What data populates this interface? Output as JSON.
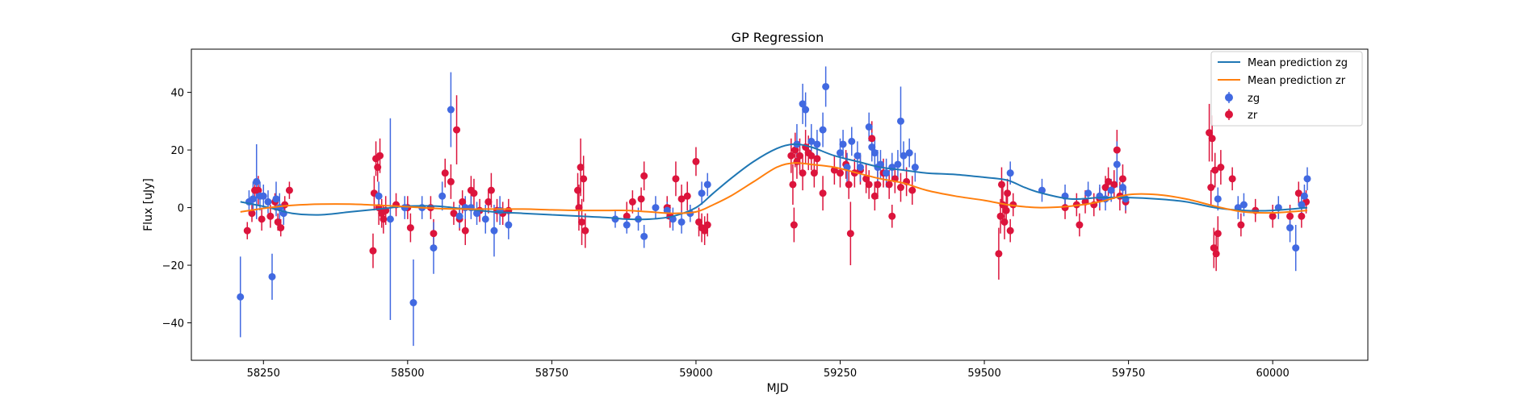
{
  "chart_data": {
    "type": "scatter",
    "title": "GP Regression",
    "xlabel": "MJD",
    "ylabel": "Flux [uJy]",
    "xlim": [
      58125,
      60165
    ],
    "ylim": [
      -53,
      55
    ],
    "xticks": [
      58250,
      58500,
      58750,
      59000,
      59250,
      59500,
      59750,
      60000
    ],
    "xtick_labels": [
      "58250",
      "58500",
      "58750",
      "59000",
      "59250",
      "59500",
      "59750",
      "60000"
    ],
    "yticks": [
      -40,
      -20,
      0,
      20,
      40
    ],
    "ytick_labels": [
      "−40",
      "−20",
      "0",
      "20",
      "40"
    ],
    "grid": false,
    "legend_position": "top-right",
    "colors": {
      "zg": "#4169e1",
      "zr": "#dc143c",
      "mean_zg": "#1f77b4",
      "mean_zr": "#ff7f0e"
    },
    "lines": [
      {
        "name": "Mean prediction zg",
        "color": "#1f77b4",
        "x": [
          58210,
          58260,
          58300,
          58350,
          58400,
          58450,
          58500,
          58550,
          58600,
          58650,
          58700,
          58750,
          58800,
          58850,
          58880,
          58920,
          58960,
          59000,
          59030,
          59060,
          59100,
          59140,
          59170,
          59200,
          59240,
          59280,
          59320,
          59360,
          59400,
          59450,
          59500,
          59540,
          59570,
          59600,
          59650,
          59700,
          59750,
          59800,
          59850,
          59900,
          59950,
          60000,
          60060
        ],
        "y": [
          2,
          0,
          -2,
          -2.5,
          -1.5,
          -0.5,
          0.5,
          0.5,
          -0.5,
          -1.5,
          -2,
          -2.5,
          -3,
          -3.5,
          -4,
          -4,
          -3,
          0,
          5,
          10,
          16,
          20.5,
          22,
          21,
          18,
          16,
          14,
          13,
          12,
          11.5,
          10.5,
          9.5,
          7,
          5,
          3,
          3.5,
          3.5,
          3,
          2,
          0,
          -1,
          -1,
          0
        ]
      },
      {
        "name": "Mean prediction zr",
        "color": "#ff7f0e",
        "x": [
          58210,
          58260,
          58300,
          58350,
          58400,
          58450,
          58500,
          58550,
          58600,
          58650,
          58700,
          58750,
          58800,
          58850,
          58880,
          58920,
          58960,
          59000,
          59030,
          59060,
          59100,
          59140,
          59170,
          59200,
          59240,
          59280,
          59320,
          59360,
          59400,
          59450,
          59500,
          59540,
          59570,
          59600,
          59650,
          59700,
          59750,
          59800,
          59850,
          59900,
          59950,
          60000,
          60060
        ],
        "y": [
          -1.5,
          0,
          0.8,
          1.2,
          1.2,
          0.8,
          0.3,
          -0.3,
          -0.5,
          -0.5,
          -0.5,
          -0.8,
          -1,
          -1,
          -1,
          -1.5,
          -2,
          -1.5,
          1,
          4,
          9,
          14,
          15.5,
          15,
          14,
          12,
          10,
          8.5,
          6,
          4,
          2.5,
          1,
          0.3,
          0,
          0.5,
          2,
          4.5,
          4.5,
          3,
          0.5,
          -1.5,
          -1.8,
          -1
        ]
      }
    ],
    "series": [
      {
        "name": "zg",
        "color": "#4169e1",
        "points": [
          [
            58210,
            -31,
            14
          ],
          [
            58225,
            2,
            4
          ],
          [
            58232,
            3,
            6
          ],
          [
            58238,
            9,
            13
          ],
          [
            58244,
            4,
            5
          ],
          [
            58250,
            4,
            4
          ],
          [
            58258,
            2,
            4
          ],
          [
            58265,
            -24,
            8
          ],
          [
            58272,
            3,
            6
          ],
          [
            58278,
            0,
            5
          ],
          [
            58285,
            -2,
            4
          ],
          [
            58450,
            4,
            5
          ],
          [
            58470,
            -4,
            35
          ],
          [
            58495,
            0,
            4
          ],
          [
            58510,
            -33,
            15
          ],
          [
            58525,
            0,
            4
          ],
          [
            58545,
            -14,
            9
          ],
          [
            58560,
            4,
            5
          ],
          [
            58575,
            34,
            13
          ],
          [
            58590,
            -3,
            4
          ],
          [
            58600,
            0,
            4
          ],
          [
            58610,
            0,
            4
          ],
          [
            58620,
            -2,
            4
          ],
          [
            58635,
            -4,
            5
          ],
          [
            58650,
            -8,
            9
          ],
          [
            58660,
            -1,
            5
          ],
          [
            58675,
            -6,
            5
          ],
          [
            58860,
            -4,
            3
          ],
          [
            58880,
            -6,
            3
          ],
          [
            58900,
            -4,
            4
          ],
          [
            58910,
            -10,
            4
          ],
          [
            58930,
            0,
            4
          ],
          [
            58950,
            -1,
            3
          ],
          [
            58960,
            -4,
            4
          ],
          [
            58975,
            -5,
            4
          ],
          [
            58990,
            -2,
            3
          ],
          [
            59010,
            5,
            4
          ],
          [
            59020,
            8,
            4
          ],
          [
            59175,
            22,
            7
          ],
          [
            59185,
            36,
            7
          ],
          [
            59190,
            34,
            6
          ],
          [
            59200,
            23,
            6
          ],
          [
            59210,
            22,
            5
          ],
          [
            59220,
            27,
            6
          ],
          [
            59225,
            42,
            7
          ],
          [
            59250,
            19,
            5
          ],
          [
            59255,
            22,
            5
          ],
          [
            59262,
            14,
            5
          ],
          [
            59270,
            23,
            5
          ],
          [
            59280,
            18,
            5
          ],
          [
            59285,
            14,
            5
          ],
          [
            59300,
            28,
            5
          ],
          [
            59305,
            21,
            5
          ],
          [
            59310,
            19,
            5
          ],
          [
            59315,
            14,
            6
          ],
          [
            59320,
            15,
            5
          ],
          [
            59330,
            12,
            5
          ],
          [
            59340,
            14,
            5
          ],
          [
            59350,
            15,
            5
          ],
          [
            59355,
            30,
            12
          ],
          [
            59360,
            18,
            5
          ],
          [
            59370,
            19,
            5
          ],
          [
            59380,
            14,
            5
          ],
          [
            59545,
            12,
            4
          ],
          [
            59600,
            6,
            4
          ],
          [
            59640,
            4,
            4
          ],
          [
            59680,
            5,
            4
          ],
          [
            59700,
            4,
            4
          ],
          [
            59710,
            3,
            4
          ],
          [
            59720,
            6,
            4
          ],
          [
            59730,
            15,
            8
          ],
          [
            59740,
            7,
            4
          ],
          [
            59745,
            3,
            4
          ],
          [
            59905,
            3,
            4
          ],
          [
            59940,
            0,
            4
          ],
          [
            59950,
            1,
            4
          ],
          [
            60010,
            0,
            4
          ],
          [
            60030,
            -7,
            5
          ],
          [
            60040,
            -14,
            8
          ],
          [
            60050,
            1,
            3
          ],
          [
            60055,
            4,
            4
          ],
          [
            60060,
            10,
            4
          ]
        ]
      },
      {
        "name": "zr",
        "color": "#dc143c",
        "points": [
          [
            58222,
            -8,
            3
          ],
          [
            58230,
            -2,
            3
          ],
          [
            58235,
            6,
            4
          ],
          [
            58241,
            6,
            5
          ],
          [
            58247,
            -4,
            4
          ],
          [
            58262,
            -3,
            4
          ],
          [
            58270,
            2,
            3
          ],
          [
            58275,
            -5,
            3
          ],
          [
            58280,
            -7,
            3
          ],
          [
            58287,
            1,
            3
          ],
          [
            58295,
            6,
            3
          ],
          [
            58440,
            -15,
            6
          ],
          [
            58442,
            5,
            6
          ],
          [
            58445,
            17,
            6
          ],
          [
            58448,
            14,
            5
          ],
          [
            58450,
            0,
            6
          ],
          [
            58452,
            18,
            6
          ],
          [
            58455,
            -2,
            5
          ],
          [
            58458,
            -4,
            5
          ],
          [
            58462,
            -1,
            5
          ],
          [
            58480,
            1,
            4
          ],
          [
            58500,
            0,
            4
          ],
          [
            58505,
            -7,
            5
          ],
          [
            58540,
            0,
            4
          ],
          [
            58545,
            -9,
            5
          ],
          [
            58565,
            12,
            5
          ],
          [
            58575,
            9,
            6
          ],
          [
            58580,
            -2,
            4
          ],
          [
            58585,
            27,
            12
          ],
          [
            58590,
            -4,
            4
          ],
          [
            58595,
            2,
            4
          ],
          [
            58600,
            -8,
            5
          ],
          [
            58610,
            6,
            5
          ],
          [
            58615,
            5,
            5
          ],
          [
            58625,
            -1,
            4
          ],
          [
            58640,
            2,
            4
          ],
          [
            58645,
            6,
            6
          ],
          [
            58655,
            -1,
            4
          ],
          [
            58665,
            -2,
            4
          ],
          [
            58675,
            -1,
            4
          ],
          [
            58795,
            6,
            6
          ],
          [
            58797,
            0,
            8
          ],
          [
            58800,
            14,
            10
          ],
          [
            58802,
            -5,
            8
          ],
          [
            58805,
            10,
            8
          ],
          [
            58808,
            -8,
            6
          ],
          [
            58880,
            -3,
            5
          ],
          [
            58890,
            2,
            4
          ],
          [
            58905,
            3,
            4
          ],
          [
            58910,
            11,
            5
          ],
          [
            58950,
            0,
            4
          ],
          [
            58955,
            -3,
            4
          ],
          [
            58965,
            10,
            6
          ],
          [
            58975,
            3,
            5
          ],
          [
            58985,
            4,
            5
          ],
          [
            59000,
            16,
            5
          ],
          [
            59005,
            -5,
            5
          ],
          [
            59010,
            -7,
            5
          ],
          [
            59015,
            -8,
            5
          ],
          [
            59020,
            -6,
            4
          ],
          [
            59165,
            18,
            6
          ],
          [
            59168,
            8,
            7
          ],
          [
            59170,
            -6,
            6
          ],
          [
            59172,
            20,
            6
          ],
          [
            59175,
            16,
            6
          ],
          [
            59180,
            18,
            6
          ],
          [
            59185,
            12,
            6
          ],
          [
            59190,
            21,
            6
          ],
          [
            59195,
            19,
            6
          ],
          [
            59200,
            18,
            5
          ],
          [
            59205,
            12,
            5
          ],
          [
            59210,
            17,
            5
          ],
          [
            59220,
            5,
            6
          ],
          [
            59240,
            13,
            5
          ],
          [
            59250,
            12,
            5
          ],
          [
            59260,
            15,
            5
          ],
          [
            59265,
            8,
            5
          ],
          [
            59268,
            -9,
            11
          ],
          [
            59275,
            12,
            5
          ],
          [
            59285,
            13,
            5
          ],
          [
            59295,
            10,
            5
          ],
          [
            59300,
            8,
            5
          ],
          [
            59305,
            24,
            6
          ],
          [
            59310,
            4,
            5
          ],
          [
            59315,
            8,
            5
          ],
          [
            59325,
            12,
            5
          ],
          [
            59335,
            8,
            5
          ],
          [
            59340,
            -3,
            4
          ],
          [
            59345,
            10,
            5
          ],
          [
            59355,
            7,
            5
          ],
          [
            59365,
            9,
            5
          ],
          [
            59375,
            6,
            5
          ],
          [
            59525,
            -16,
            9
          ],
          [
            59528,
            -3,
            6
          ],
          [
            59530,
            8,
            6
          ],
          [
            59532,
            1,
            6
          ],
          [
            59535,
            -5,
            6
          ],
          [
            59538,
            -1,
            5
          ],
          [
            59540,
            5,
            5
          ],
          [
            59545,
            -8,
            4
          ],
          [
            59550,
            1,
            4
          ],
          [
            59640,
            0,
            4
          ],
          [
            59660,
            1,
            4
          ],
          [
            59665,
            -6,
            4
          ],
          [
            59675,
            2,
            4
          ],
          [
            59690,
            1,
            4
          ],
          [
            59700,
            3,
            4
          ],
          [
            59710,
            7,
            4
          ],
          [
            59715,
            9,
            5
          ],
          [
            59725,
            8,
            5
          ],
          [
            59730,
            20,
            7
          ],
          [
            59735,
            4,
            5
          ],
          [
            59740,
            10,
            5
          ],
          [
            59745,
            2,
            4
          ],
          [
            59890,
            26,
            10
          ],
          [
            59893,
            7,
            6
          ],
          [
            59895,
            24,
            8
          ],
          [
            59898,
            -14,
            7
          ],
          [
            59900,
            13,
            6
          ],
          [
            59902,
            -16,
            6
          ],
          [
            59905,
            -9,
            6
          ],
          [
            59910,
            14,
            6
          ],
          [
            59930,
            10,
            4
          ],
          [
            59945,
            -6,
            4
          ],
          [
            59970,
            -1,
            4
          ],
          [
            60000,
            -3,
            4
          ],
          [
            60030,
            -3,
            4
          ],
          [
            60045,
            5,
            4
          ],
          [
            60050,
            -3,
            4
          ],
          [
            60058,
            2,
            4
          ]
        ]
      }
    ]
  }
}
